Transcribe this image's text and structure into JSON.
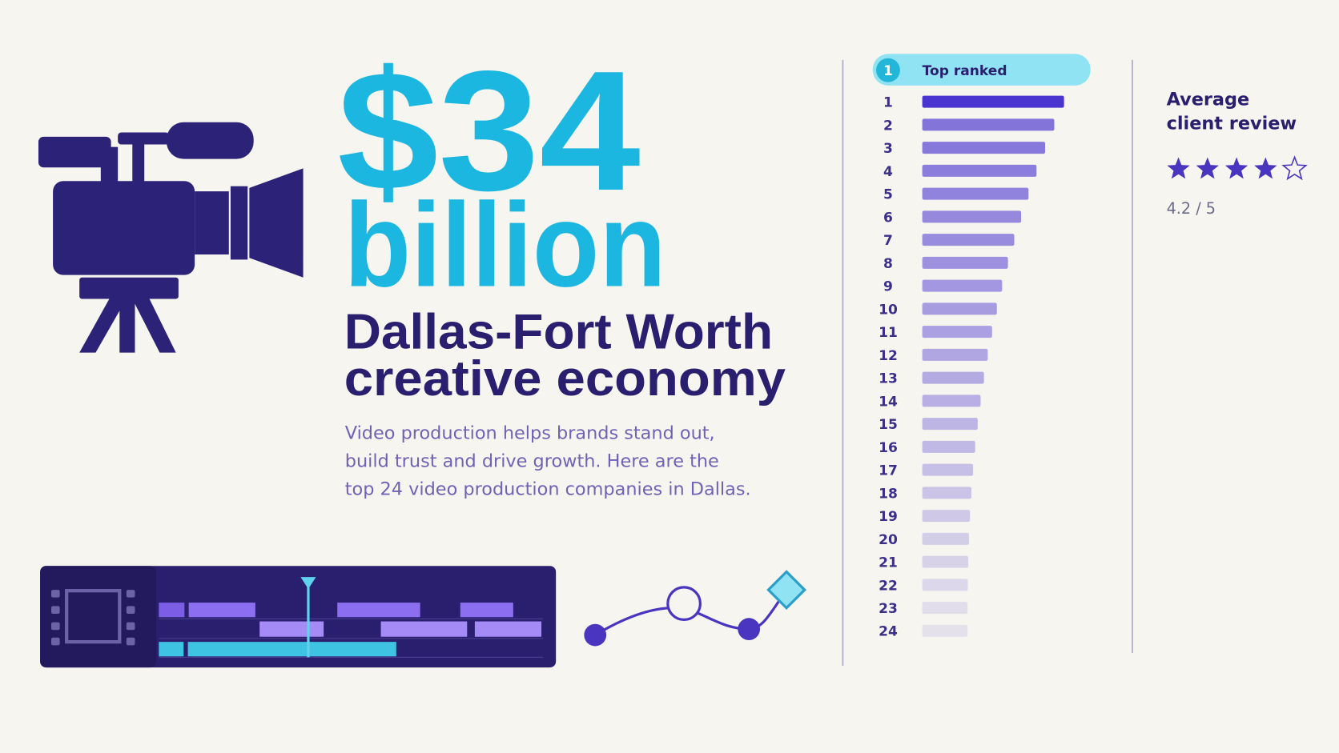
{
  "headline": {
    "amount": "$34",
    "unit": "billion",
    "title_line1": "Dallas-Fort Worth",
    "title_line2": "creative economy"
  },
  "description": [
    "Video production helps brands stand out,",
    "build trust and drive growth. Here are the",
    "top 24 video production companies in Dallas."
  ],
  "ranking": {
    "badge": "1",
    "label": "Top ranked",
    "ranks": [
      "1",
      "2",
      "3",
      "4",
      "5",
      "6",
      "7",
      "8",
      "9",
      "10",
      "11",
      "12",
      "13",
      "14",
      "15",
      "16",
      "17",
      "18",
      "19",
      "20",
      "21",
      "22",
      "23",
      "24"
    ]
  },
  "review": {
    "title": [
      "Average",
      "client review"
    ],
    "score": "4.2 / 5"
  }
}
